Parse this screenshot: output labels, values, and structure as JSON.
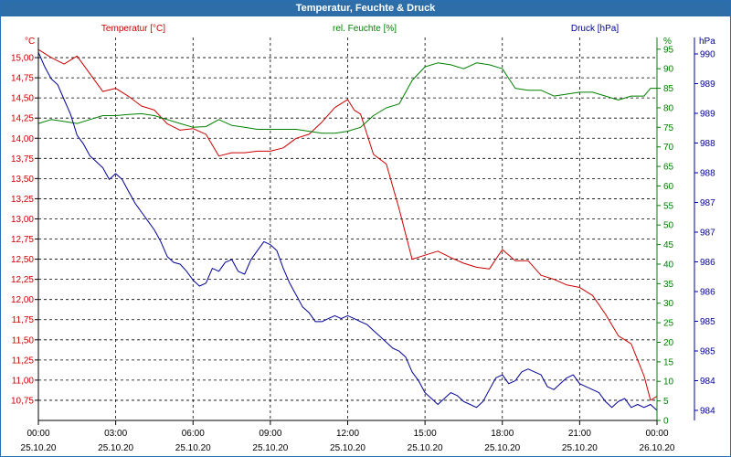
{
  "window": {
    "title": "Temperatur, Feuchte & Druck"
  },
  "colors": {
    "temperature": "#cc0000",
    "humidity": "#008000",
    "pressure": "#000099",
    "title_bar": "#2d6da8"
  },
  "chart_data": {
    "type": "line",
    "title": "Temperatur, Feuchte & Druck",
    "grid": true,
    "x_axis": {
      "range": [
        "25.10.20 00:00",
        "26.10.20 00:00"
      ],
      "ticks": [
        {
          "time": "00:00",
          "date": "25.10.20"
        },
        {
          "time": "03:00",
          "date": "25.10.20"
        },
        {
          "time": "06:00",
          "date": "25.10.20"
        },
        {
          "time": "09:00",
          "date": "25.10.20"
        },
        {
          "time": "12:00",
          "date": "25.10.20"
        },
        {
          "time": "15:00",
          "date": "25.10.20"
        },
        {
          "time": "18:00",
          "date": "25.10.20"
        },
        {
          "time": "21:00",
          "date": "25.10.20"
        },
        {
          "time": "00:00",
          "date": "26.10.20"
        }
      ]
    },
    "axes": {
      "temperature": {
        "label": "Temperatur [°C]",
        "unit": "°C",
        "ylim": [
          10.5,
          15.25
        ],
        "ticks": [
          "15,00",
          "14,75",
          "14,50",
          "14,25",
          "14,00",
          "13,75",
          "13,50",
          "13,25",
          "13,00",
          "12,75",
          "12,50",
          "12,25",
          "12,00",
          "11,75",
          "11,50",
          "11,25",
          "11,00",
          "10,75"
        ]
      },
      "humidity": {
        "label": "rel. Feuchte [%]",
        "unit": "%",
        "ylim": [
          0,
          98
        ],
        "ticks": [
          "95",
          "90",
          "85",
          "80",
          "75",
          "70",
          "65",
          "60",
          "55",
          "50",
          "45",
          "40",
          "35",
          "30",
          "25",
          "20",
          "15",
          "10",
          "5",
          "0"
        ]
      },
      "pressure": {
        "label": "Druck [hPa]",
        "unit": "hPa",
        "ylim": [
          983.78,
          990.25
        ],
        "ticks": [
          "990",
          "989",
          "989",
          "988",
          "988",
          "987",
          "987",
          "986",
          "986",
          "985",
          "985",
          "984",
          "984"
        ]
      }
    },
    "series": [
      {
        "name": "Temperatur [°C]",
        "axis": "temperature",
        "x": [
          "00:00",
          "00:30",
          "01:00",
          "01:30",
          "02:00",
          "02:30",
          "03:00",
          "03:30",
          "04:00",
          "04:30",
          "05:00",
          "05:30",
          "06:00",
          "06:30",
          "07:00",
          "07:30",
          "08:00",
          "08:30",
          "09:00",
          "09:30",
          "10:00",
          "10:30",
          "11:00",
          "11:30",
          "12:00",
          "12:15",
          "12:30",
          "13:00",
          "13:30",
          "14:00",
          "14:30",
          "15:00",
          "15:30",
          "16:00",
          "16:30",
          "17:00",
          "17:30",
          "18:00",
          "18:30",
          "19:00",
          "19:30",
          "20:00",
          "20:30",
          "21:00",
          "21:30",
          "22:00",
          "22:30",
          "23:00",
          "23:30",
          "23:45",
          "24:00"
        ],
        "values": [
          15.1,
          15.0,
          14.92,
          15.02,
          14.8,
          14.58,
          14.62,
          14.52,
          14.4,
          14.35,
          14.18,
          14.1,
          14.12,
          14.05,
          13.78,
          13.82,
          13.82,
          13.84,
          13.84,
          13.88,
          14.0,
          14.05,
          14.2,
          14.38,
          14.48,
          14.35,
          14.3,
          13.8,
          13.68,
          13.12,
          12.5,
          12.55,
          12.6,
          12.52,
          12.45,
          12.4,
          12.38,
          12.62,
          12.48,
          12.48,
          12.3,
          12.25,
          12.18,
          12.15,
          12.05,
          11.82,
          11.55,
          11.45,
          11.05,
          10.75,
          10.8
        ]
      },
      {
        "name": "rel. Feuchte [%]",
        "axis": "humidity",
        "x": [
          "00:00",
          "00:30",
          "01:00",
          "01:30",
          "02:00",
          "02:30",
          "03:00",
          "03:30",
          "04:00",
          "04:30",
          "05:00",
          "05:30",
          "06:00",
          "06:30",
          "07:00",
          "07:30",
          "08:00",
          "08:30",
          "09:00",
          "09:30",
          "10:00",
          "10:30",
          "11:00",
          "11:30",
          "12:00",
          "12:30",
          "13:00",
          "13:30",
          "14:00",
          "14:30",
          "15:00",
          "15:30",
          "16:00",
          "16:30",
          "17:00",
          "17:30",
          "18:00",
          "18:30",
          "19:00",
          "19:30",
          "20:00",
          "20:30",
          "21:00",
          "21:30",
          "22:00",
          "22:30",
          "23:00",
          "23:30",
          "23:45",
          "24:00"
        ],
        "values": [
          76,
          77,
          76.5,
          76,
          77,
          78,
          78,
          78.3,
          78.5,
          78,
          77,
          76,
          75,
          75.2,
          77,
          75.5,
          75,
          74.5,
          74.5,
          74.5,
          74.5,
          74,
          73.5,
          73.5,
          74,
          75,
          78,
          80,
          81,
          87,
          90.5,
          91.5,
          91,
          90,
          91.5,
          91,
          90,
          85,
          84.5,
          84.5,
          83,
          83.5,
          84,
          84,
          83,
          82,
          83,
          83,
          85,
          85
        ]
      },
      {
        "name": "Druck [hPa]",
        "axis": "pressure",
        "x": [
          "00:00",
          "00:15",
          "00:30",
          "00:45",
          "01:00",
          "01:15",
          "01:30",
          "01:45",
          "02:00",
          "02:15",
          "02:30",
          "02:45",
          "03:00",
          "03:15",
          "03:30",
          "03:45",
          "04:00",
          "04:15",
          "04:30",
          "04:45",
          "05:00",
          "05:15",
          "05:30",
          "05:45",
          "06:00",
          "06:15",
          "06:30",
          "06:45",
          "07:00",
          "07:15",
          "07:30",
          "07:45",
          "08:00",
          "08:15",
          "08:30",
          "08:45",
          "09:00",
          "09:15",
          "09:30",
          "09:45",
          "10:00",
          "10:15",
          "10:30",
          "10:45",
          "11:00",
          "11:15",
          "11:30",
          "11:45",
          "12:00",
          "12:15",
          "12:30",
          "12:45",
          "13:00",
          "13:15",
          "13:30",
          "13:45",
          "14:00",
          "14:15",
          "14:30",
          "14:45",
          "15:00",
          "15:15",
          "15:30",
          "15:45",
          "16:00",
          "16:15",
          "16:30",
          "16:45",
          "17:00",
          "17:15",
          "17:30",
          "17:45",
          "18:00",
          "18:15",
          "18:30",
          "18:45",
          "19:00",
          "19:15",
          "19:30",
          "19:45",
          "20:00",
          "20:15",
          "20:30",
          "20:45",
          "21:00",
          "21:15",
          "21:30",
          "21:45",
          "22:00",
          "22:15",
          "22:30",
          "22:45",
          "23:00",
          "23:15",
          "23:30",
          "23:45",
          "24:00"
        ],
        "values": [
          990.0,
          989.75,
          989.55,
          989.45,
          989.2,
          988.95,
          988.6,
          988.45,
          988.25,
          988.15,
          988.05,
          987.85,
          987.95,
          987.85,
          987.65,
          987.45,
          987.3,
          987.15,
          987.0,
          986.8,
          986.55,
          986.45,
          986.42,
          986.3,
          986.15,
          986.05,
          986.1,
          986.35,
          986.3,
          986.45,
          986.5,
          986.3,
          986.25,
          986.5,
          986.65,
          986.8,
          986.75,
          986.65,
          986.35,
          986.1,
          985.9,
          985.7,
          985.6,
          985.45,
          985.45,
          985.5,
          985.55,
          985.5,
          985.55,
          985.5,
          985.45,
          985.4,
          985.3,
          985.2,
          985.1,
          985.0,
          984.95,
          984.85,
          984.6,
          984.45,
          984.25,
          984.15,
          984.05,
          984.15,
          984.25,
          984.2,
          984.1,
          984.05,
          984.0,
          984.1,
          984.3,
          984.5,
          984.55,
          984.4,
          984.45,
          984.6,
          984.65,
          984.6,
          984.55,
          984.35,
          984.3,
          984.4,
          984.5,
          984.55,
          984.4,
          984.35,
          984.3,
          984.25,
          984.1,
          984.0,
          984.1,
          984.15,
          984.0,
          984.05,
          984.0,
          984.05,
          983.95
        ]
      }
    ]
  }
}
